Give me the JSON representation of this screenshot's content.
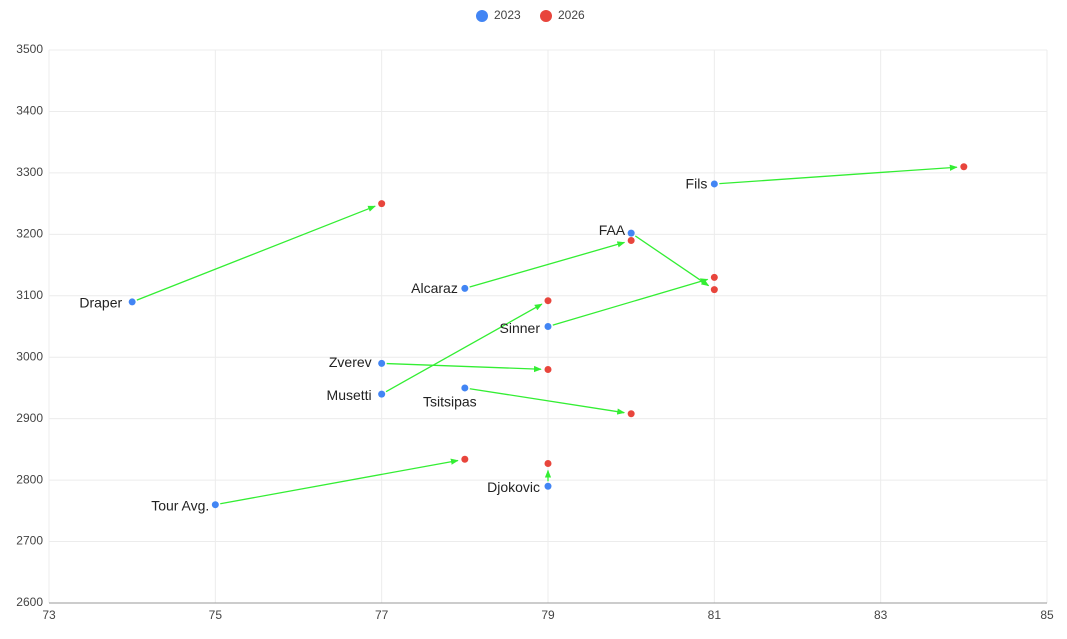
{
  "chart_data": {
    "type": "scatter",
    "labels": [
      "Draper",
      "Fils",
      "FAA",
      "Alcaraz",
      "Sinner",
      "Zverev",
      "Musetti",
      "Tsitsipas",
      "Tour Avg.",
      "Djokovic"
    ],
    "series": [
      {
        "name": "2023",
        "color": "#4285f4",
        "x": [
          74,
          81,
          80,
          78,
          79,
          77,
          77,
          78,
          75,
          79
        ],
        "y": [
          3090,
          3282,
          3202,
          3112,
          3050,
          2990,
          2940,
          2950,
          2760,
          2790
        ]
      },
      {
        "name": "2026",
        "color": "#e8453c",
        "x": [
          77,
          84,
          81,
          80,
          81,
          79,
          79,
          80,
          78,
          79
        ],
        "y": [
          3250,
          3310,
          3110,
          3190,
          3130,
          2980,
          3092,
          2908,
          2834,
          2827
        ]
      }
    ],
    "arrow_color": "#33ee33",
    "xlim": [
      73,
      85
    ],
    "xticks": [
      73,
      75,
      77,
      79,
      81,
      83,
      85
    ],
    "ylim": [
      2600,
      3500
    ],
    "yticks": [
      2600,
      2700,
      2800,
      2900,
      3000,
      3100,
      3200,
      3300,
      3400,
      3500
    ],
    "grid": true,
    "legend": "top"
  }
}
